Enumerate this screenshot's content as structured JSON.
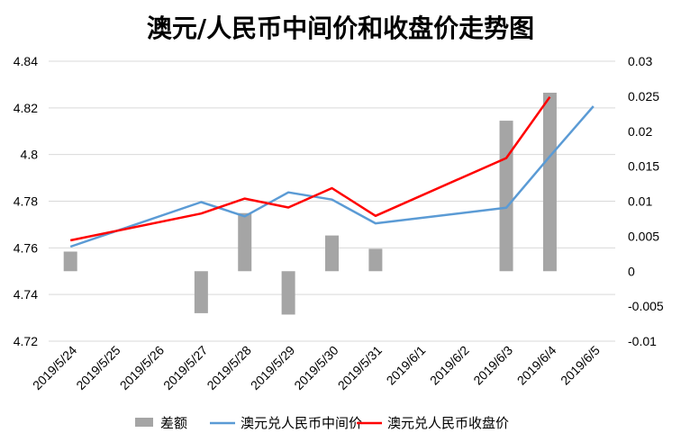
{
  "chart_data": {
    "type": "bar+line",
    "title": "澳元/人民币中间价和收盘价走势图",
    "categories": [
      "2019/5/24",
      "2019/5/25",
      "2019/5/26",
      "2019/5/27",
      "2019/5/28",
      "2019/5/29",
      "2019/5/30",
      "2019/5/31",
      "2019/6/1",
      "2019/6/2",
      "2019/6/3",
      "2019/6/4",
      "2019/6/5"
    ],
    "y_left": {
      "ticks": [
        "4.72",
        "4.74",
        "4.76",
        "4.78",
        "4.8",
        "4.82",
        "4.84"
      ],
      "ylim": [
        4.72,
        4.84
      ]
    },
    "y_right": {
      "ticks": [
        "-0.01",
        "-0.005",
        "0",
        "0.005",
        "0.01",
        "0.015",
        "0.02",
        "0.025",
        "0.03"
      ],
      "ylim": [
        -0.01,
        0.03
      ]
    },
    "grid": true,
    "legend_position": "bottom",
    "series": [
      {
        "name": "差额",
        "kind": "bar",
        "axis": "right",
        "color": "#a5a5a5",
        "values": [
          0.0028,
          null,
          null,
          -0.006,
          0.0083,
          -0.0062,
          0.0051,
          0.0032,
          null,
          null,
          0.0215,
          0.0255,
          null
        ]
      },
      {
        "name": "澳元兑人民币中间价",
        "kind": "line",
        "axis": "left",
        "color": "#5b9bd5",
        "values": [
          4.7605,
          null,
          null,
          4.7796,
          4.7735,
          4.7838,
          4.7807,
          4.7705,
          null,
          null,
          4.7772,
          4.7992,
          4.8207
        ]
      },
      {
        "name": "澳元兑人民币收盘价",
        "kind": "line",
        "axis": "left",
        "color": "#ff0000",
        "values": [
          4.7632,
          null,
          null,
          4.7747,
          4.7811,
          4.7773,
          4.7856,
          4.7737,
          null,
          null,
          4.7985,
          4.8247,
          null
        ]
      }
    ]
  }
}
